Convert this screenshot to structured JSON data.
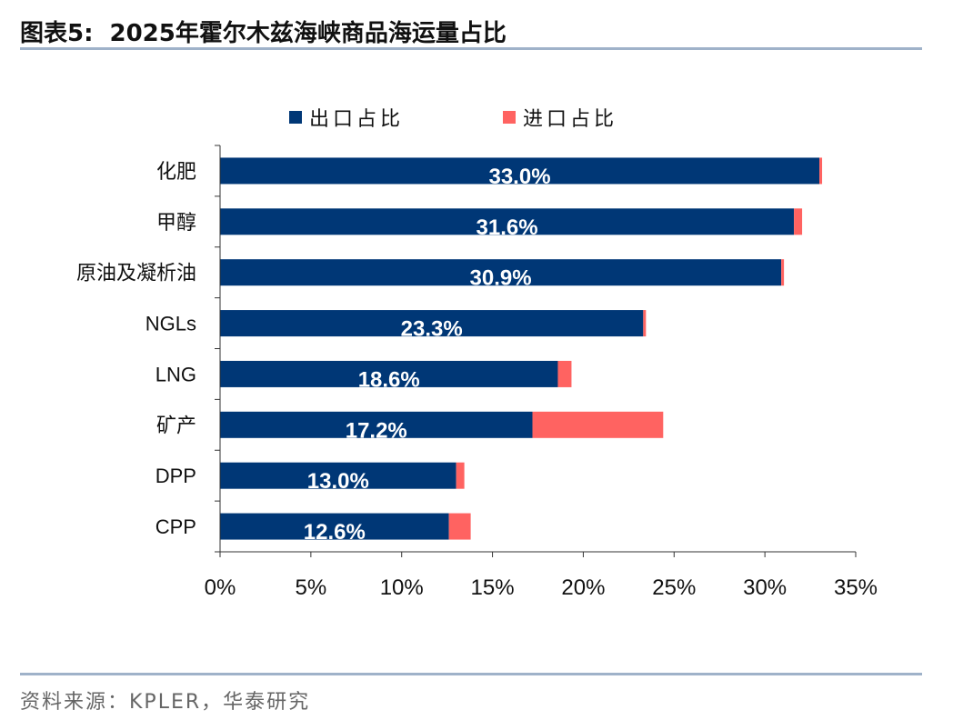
{
  "header": {
    "label": "图表5:",
    "title": "2025年霍尔木兹海峡商品海运量占比"
  },
  "source": "资料来源：KPLER，华泰研究",
  "chart_data": {
    "type": "bar",
    "orientation": "horizontal",
    "stacked": true,
    "categories": [
      "化肥",
      "甲醇",
      "原油及凝析油",
      "NGLs",
      "LNG",
      "矿产",
      "DPP",
      "CPP"
    ],
    "series": [
      {
        "name": "出口占比",
        "color": "#003776",
        "values": [
          33.0,
          31.6,
          30.9,
          23.3,
          18.6,
          17.2,
          13.0,
          12.6
        ],
        "labels": [
          "33.0%",
          "31.6%",
          "30.9%",
          "23.3%",
          "18.6%",
          "17.2%",
          "13.0%",
          "12.6%"
        ]
      },
      {
        "name": "进口占比",
        "color": "#ff6361",
        "values": [
          0.15,
          0.45,
          0.15,
          0.15,
          0.75,
          7.2,
          0.45,
          1.2
        ]
      }
    ],
    "xlim": [
      0,
      35
    ],
    "xticks": [
      "0%",
      "5%",
      "10%",
      "15%",
      "20%",
      "25%",
      "30%",
      "35%"
    ],
    "grid": false,
    "legend": "top"
  }
}
